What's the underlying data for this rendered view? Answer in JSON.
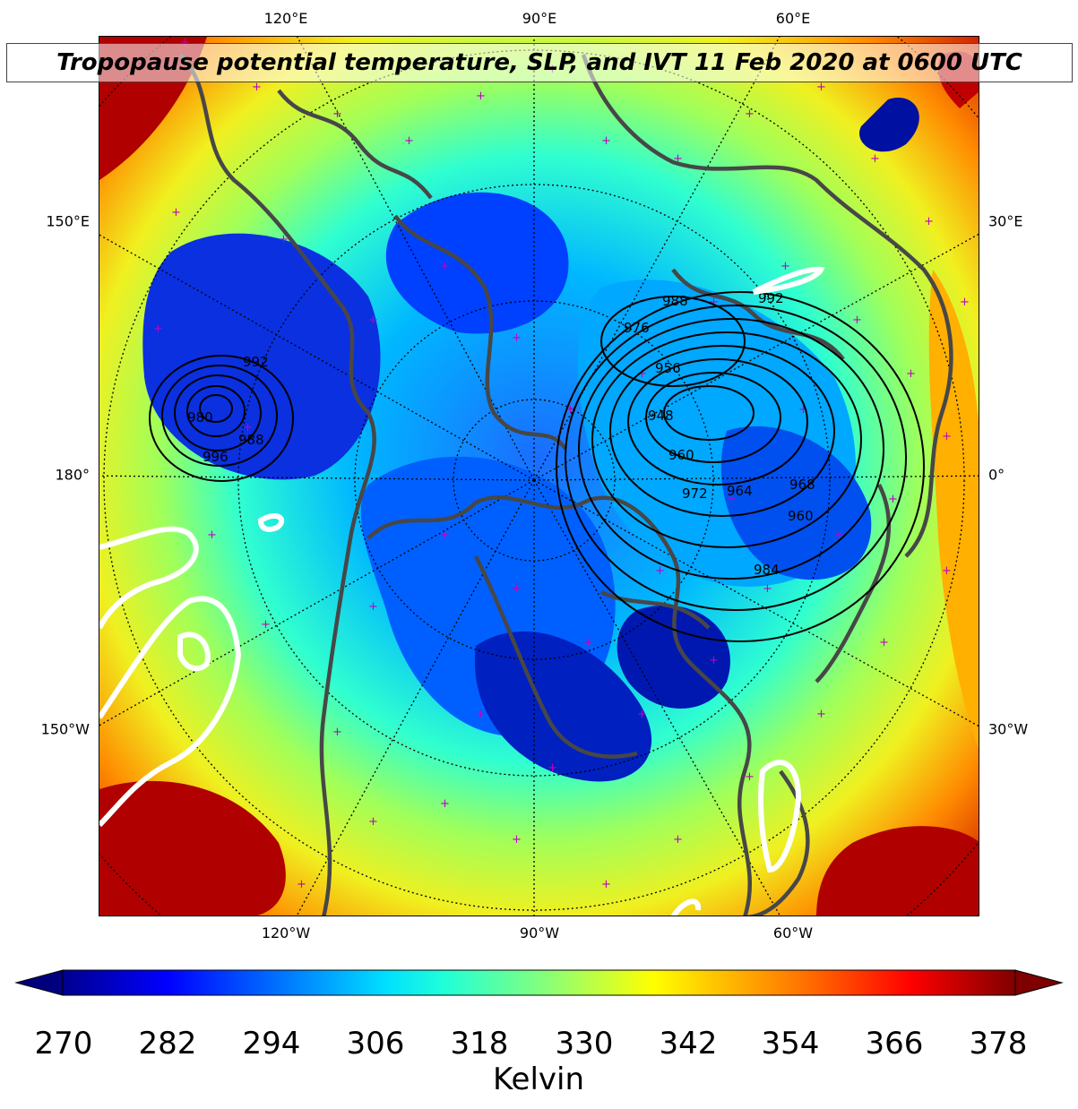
{
  "title": "Tropopause potential temperature, SLP, and IVT 11 Feb 2020 at 0600 UTC",
  "axes": {
    "top": [
      "120°E",
      "90°E",
      "60°E"
    ],
    "bottom": [
      "120°W",
      "90°W",
      "60°W"
    ],
    "left": [
      "150°E",
      "180°",
      "150°W"
    ],
    "right": [
      "30°E",
      "0°",
      "30°W"
    ]
  },
  "colorbar": {
    "ticks": [
      "270",
      "282",
      "294",
      "306",
      "318",
      "330",
      "342",
      "354",
      "366",
      "378"
    ],
    "label": "Kelvin",
    "min": 270,
    "max": 378,
    "colormap": "jet"
  },
  "slp_contour_labels": [
    "988",
    "976",
    "956",
    "948",
    "960",
    "972",
    "964",
    "960",
    "984",
    "968",
    "992",
    "988",
    "996",
    "980",
    "992"
  ],
  "colors": {
    "coastline": "#474747",
    "station_marker": "#c000c0",
    "slp_contour": "#000000",
    "ivt_contour": "#ffffff",
    "graticule": "#000000"
  }
}
